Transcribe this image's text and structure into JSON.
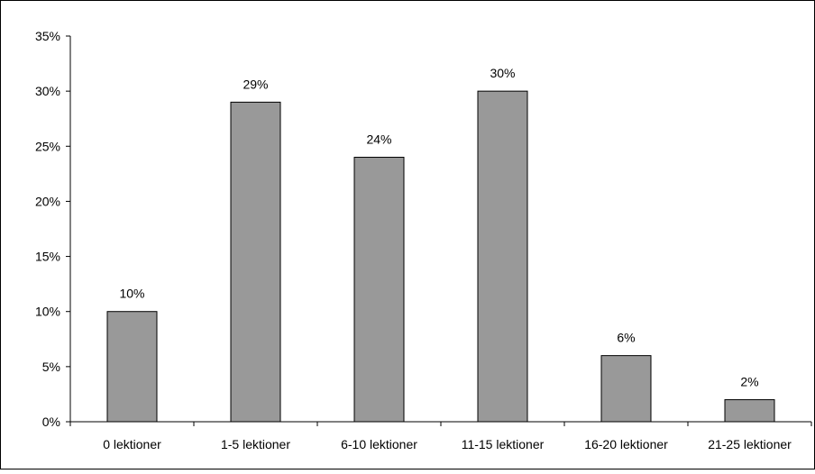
{
  "chart_data": {
    "type": "bar",
    "categories": [
      "0 lektioner",
      "1-5 lektioner",
      "6-10 lektioner",
      "11-15 lektioner",
      "16-20 lektioner",
      "21-25 lektioner"
    ],
    "values": [
      10,
      29,
      24,
      30,
      6,
      2
    ],
    "data_labels": [
      "10%",
      "29%",
      "24%",
      "30%",
      "6%",
      "2%"
    ],
    "y_tick_labels": [
      "0%",
      "5%",
      "10%",
      "15%",
      "20%",
      "25%",
      "30%",
      "35%"
    ],
    "ylim": [
      0,
      35
    ],
    "y_step": 5,
    "title": "",
    "xlabel": "",
    "ylabel": "",
    "grid": false,
    "legend": "none",
    "bar_color": "#999999",
    "bar_stroke": "#000000"
  }
}
